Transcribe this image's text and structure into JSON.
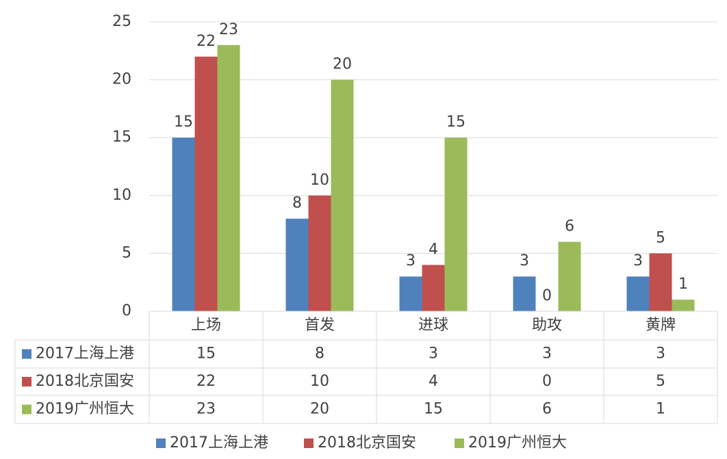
{
  "chart_data": {
    "type": "bar",
    "categories": [
      "上场",
      "首发",
      "进球",
      "助攻",
      "黄牌"
    ],
    "series": [
      {
        "name": "2017上海上港",
        "color": "#4f81bd",
        "values": [
          15,
          8,
          3,
          3,
          3
        ]
      },
      {
        "name": "2018北京国安",
        "color": "#c0504d",
        "values": [
          22,
          10,
          4,
          0,
          5
        ]
      },
      {
        "name": "2019广州恒大",
        "color": "#9bbb59",
        "values": [
          23,
          20,
          15,
          6,
          1
        ]
      }
    ],
    "ylim": [
      0,
      25
    ],
    "yticks": [
      0,
      5,
      10,
      15,
      20,
      25
    ],
    "grid": true,
    "data_table": true,
    "legend": "bottom"
  }
}
